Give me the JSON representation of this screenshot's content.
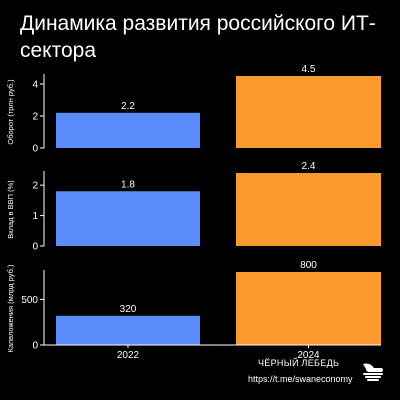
{
  "title": "Динамика развития российского ИТ-сектора",
  "footer": {
    "brand": "ЧЁРНЫЙ ЛЕБЕДЬ",
    "link": "https://t.me/swaneconomy"
  },
  "colors": {
    "background": "#000000",
    "bar_2022": "#5b8dfa",
    "bar_2024": "#fb9a2c",
    "axis": "#ffffff",
    "grid": "#2b2b2b",
    "brand_logo": "#ffffff"
  },
  "chart_data": [
    {
      "type": "bar",
      "categories": [
        "2022",
        "2024"
      ],
      "values": [
        2.2,
        4.5
      ],
      "ylabel": "Оборот (трлн руб.)",
      "yticks": [
        0,
        2,
        4
      ],
      "ylim": [
        0,
        4.5
      ],
      "xlabel": "",
      "grid": false
    },
    {
      "type": "bar",
      "categories": [
        "2022",
        "2024"
      ],
      "values": [
        1.8,
        2.4
      ],
      "ylabel": "Вклад в ВВП (%)",
      "yticks": [
        0,
        1,
        2
      ],
      "ylim": [
        0,
        2.4
      ],
      "xlabel": "",
      "grid": false
    },
    {
      "type": "bar",
      "categories": [
        "2022",
        "2024"
      ],
      "values": [
        320,
        800
      ],
      "ylabel": "Капвложения (млрд руб.)",
      "yticks": [
        0,
        500
      ],
      "ylim": [
        0,
        800
      ],
      "xlabel": "",
      "grid": false,
      "show_category_labels": true
    }
  ]
}
